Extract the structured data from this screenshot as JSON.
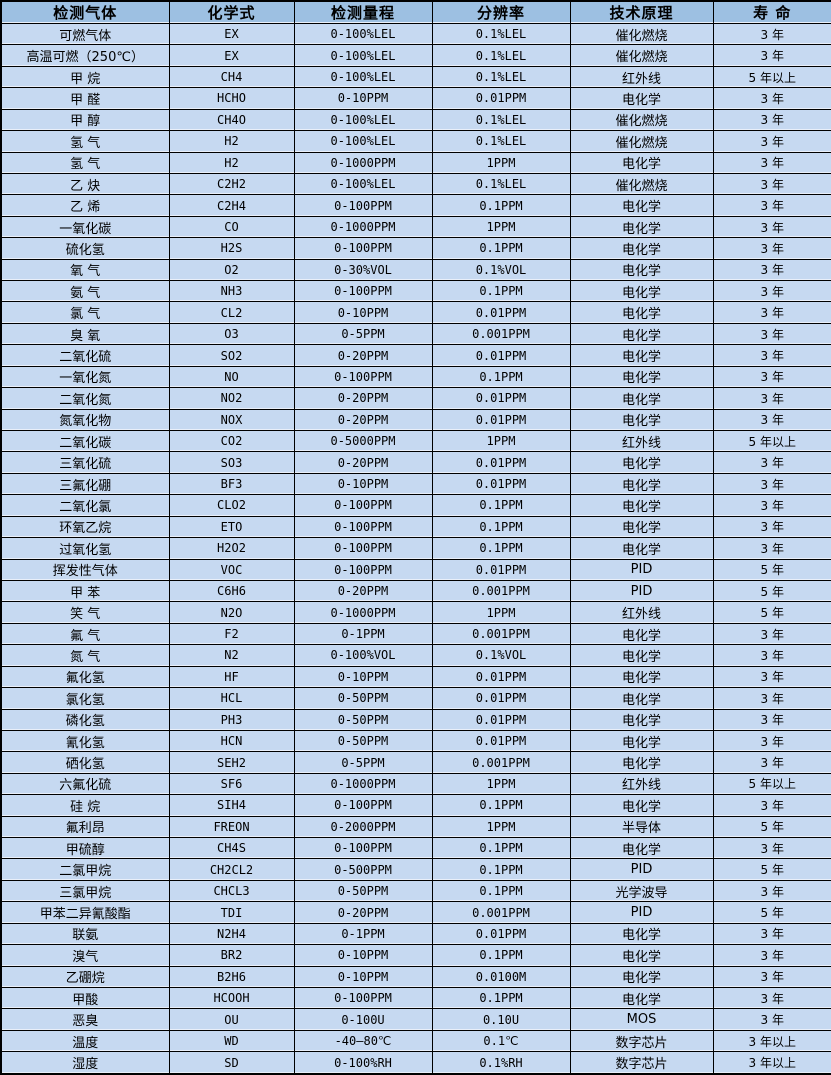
{
  "colors": {
    "header_bg": "#9dc0e2",
    "row_bg": "#c6d9f1",
    "border_color": "#000000",
    "text_color": "#000000",
    "inner_edge": "#e9eff9"
  },
  "table": {
    "headers": [
      "检测气体",
      "化学式",
      "检测量程",
      "分辨率",
      "技术原理",
      "寿 命"
    ],
    "column_names": [
      "gas-name",
      "chemical-formula",
      "detection-range",
      "resolution",
      "technical-principle",
      "lifespan"
    ],
    "rows": [
      [
        "可燃气体",
        "EX",
        "0-100%LEL",
        "0.1%LEL",
        "催化燃烧",
        "3 年"
      ],
      [
        "高温可燃（250℃）",
        "EX",
        "0-100%LEL",
        "0.1%LEL",
        "催化燃烧",
        "3 年"
      ],
      [
        "甲 烷",
        "CH4",
        "0-100%LEL",
        "0.1%LEL",
        "红外线",
        "5 年以上"
      ],
      [
        "甲 醛",
        "HCHO",
        "0-10PPM",
        "0.01PPM",
        "电化学",
        "3 年"
      ],
      [
        "甲 醇",
        "CH4O",
        "0-100%LEL",
        "0.1%LEL",
        "催化燃烧",
        "3 年"
      ],
      [
        "氢 气",
        "H2",
        "0-100%LEL",
        "0.1%LEL",
        "催化燃烧",
        "3 年"
      ],
      [
        "氢 气",
        "H2",
        "0-1000PPM",
        "1PPM",
        "电化学",
        "3 年"
      ],
      [
        "乙 炔",
        "C2H2",
        "0-100%LEL",
        "0.1%LEL",
        "催化燃烧",
        "3 年"
      ],
      [
        "乙 烯",
        "C2H4",
        "0-100PPM",
        "0.1PPM",
        "电化学",
        "3 年"
      ],
      [
        "一氧化碳",
        "CO",
        "0-1000PPM",
        "1PPM",
        "电化学",
        "3 年"
      ],
      [
        "硫化氢",
        "H2S",
        "0-100PPM",
        "0.1PPM",
        "电化学",
        "3 年"
      ],
      [
        "氧 气",
        "O2",
        "0-30%VOL",
        "0.1%VOL",
        "电化学",
        "3 年"
      ],
      [
        "氨 气",
        "NH3",
        "0-100PPM",
        "0.1PPM",
        "电化学",
        "3 年"
      ],
      [
        "氯 气",
        "CL2",
        "0-10PPM",
        "0.01PPM",
        "电化学",
        "3 年"
      ],
      [
        "臭 氧",
        "O3",
        "0-5PPM",
        "0.001PPM",
        "电化学",
        "3 年"
      ],
      [
        "二氧化硫",
        "SO2",
        "0-20PPM",
        "0.01PPM",
        "电化学",
        "3 年"
      ],
      [
        "一氧化氮",
        "NO",
        "0-100PPM",
        "0.1PPM",
        "电化学",
        "3 年"
      ],
      [
        "二氧化氮",
        "NO2",
        "0-20PPM",
        "0.01PPM",
        "电化学",
        "3 年"
      ],
      [
        "氮氧化物",
        "NOX",
        "0-20PPM",
        "0.01PPM",
        "电化学",
        "3 年"
      ],
      [
        "二氧化碳",
        "CO2",
        "0-5000PPM",
        "1PPM",
        "红外线",
        "5 年以上"
      ],
      [
        "三氧化硫",
        "SO3",
        "0-20PPM",
        "0.01PPM",
        "电化学",
        "3 年"
      ],
      [
        "三氟化硼",
        "BF3",
        "0-10PPM",
        "0.01PPM",
        "电化学",
        "3 年"
      ],
      [
        "二氧化氯",
        "CLO2",
        "0-100PPM",
        "0.1PPM",
        "电化学",
        "3 年"
      ],
      [
        "环氧乙烷",
        "ETO",
        "0-100PPM",
        "0.1PPM",
        "电化学",
        "3 年"
      ],
      [
        "过氧化氢",
        "H2O2",
        "0-100PPM",
        "0.1PPM",
        "电化学",
        "3 年"
      ],
      [
        "挥发性气体",
        "VOC",
        "0-100PPM",
        "0.01PPM",
        "PID",
        "5 年"
      ],
      [
        "甲 苯",
        "C6H6",
        "0-20PPM",
        "0.001PPM",
        "PID",
        "5 年"
      ],
      [
        "笑 气",
        "N2O",
        "0-1000PPM",
        "1PPM",
        "红外线",
        "5 年"
      ],
      [
        "氟 气",
        "F2",
        "0-1PPM",
        "0.001PPM",
        "电化学",
        "3 年"
      ],
      [
        "氮 气",
        "N2",
        "0-100%VOL",
        "0.1%VOL",
        "电化学",
        "3 年"
      ],
      [
        "氟化氢",
        "HF",
        "0-10PPM",
        "0.01PPM",
        "电化学",
        "3 年"
      ],
      [
        "氯化氢",
        "HCL",
        "0-50PPM",
        "0.01PPM",
        "电化学",
        "3 年"
      ],
      [
        "磷化氢",
        "PH3",
        "0-50PPM",
        "0.01PPM",
        "电化学",
        "3 年"
      ],
      [
        "氰化氢",
        "HCN",
        "0-50PPM",
        "0.01PPM",
        "电化学",
        "3 年"
      ],
      [
        "硒化氢",
        "SEH2",
        "0-5PPM",
        "0.001PPM",
        "电化学",
        "3 年"
      ],
      [
        "六氟化硫",
        "SF6",
        "0-1000PPM",
        "1PPM",
        "红外线",
        "5 年以上"
      ],
      [
        "硅 烷",
        "SIH4",
        "0-100PPM",
        "0.1PPM",
        "电化学",
        "3 年"
      ],
      [
        "氟利昂",
        "FREON",
        "0-2000PPM",
        "1PPM",
        "半导体",
        "5 年"
      ],
      [
        "甲硫醇",
        "CH4S",
        "0-100PPM",
        "0.1PPM",
        "电化学",
        "3 年"
      ],
      [
        "二氯甲烷",
        "CH2CL2",
        "0-500PPM",
        "0.1PPM",
        "PID",
        "5 年"
      ],
      [
        "三氯甲烷",
        "CHCL3",
        "0-50PPM",
        "0.1PPM",
        "光学波导",
        "3 年"
      ],
      [
        "甲苯二异氰酸酯",
        "TDI",
        "0-20PPM",
        "0.001PPM",
        "PID",
        "5 年"
      ],
      [
        "联氨",
        "N2H4",
        "0-1PPM",
        "0.01PPM",
        "电化学",
        "3 年"
      ],
      [
        "溴气",
        "BR2",
        "0-10PPM",
        "0.1PPM",
        "电化学",
        "3 年"
      ],
      [
        "乙硼烷",
        "B2H6",
        "0-10PPM",
        "0.0100M",
        "电化学",
        "3 年"
      ],
      [
        "甲酸",
        "HCOOH",
        "0-100PPM",
        "0.1PPM",
        "电化学",
        "3 年"
      ],
      [
        "恶臭",
        "OU",
        "0-100U",
        "0.10U",
        "MOS",
        "3 年"
      ],
      [
        "温度",
        "WD",
        "-40—80℃",
        "0.1℃",
        "数字芯片",
        "3 年以上"
      ],
      [
        "湿度",
        "SD",
        "0-100%RH",
        "0.1%RH",
        "数字芯片",
        "3 年以上"
      ]
    ]
  }
}
